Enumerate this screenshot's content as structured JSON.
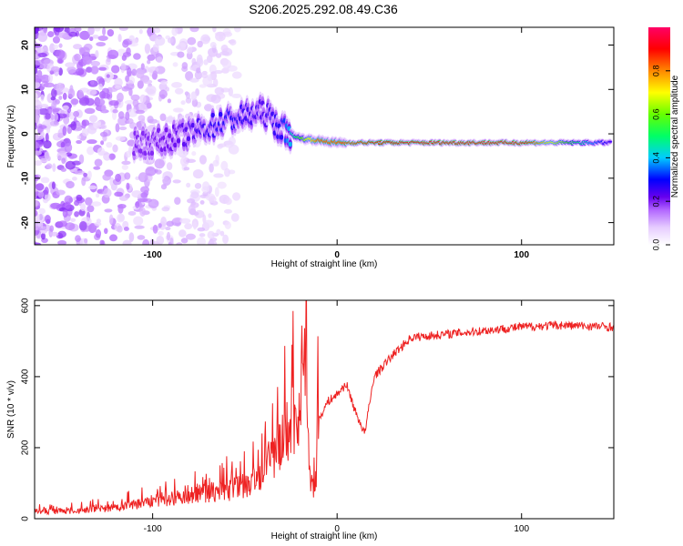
{
  "title": "S206.2025.292.08.49.C36",
  "chart_data": [
    {
      "type": "heatmap",
      "title": "S206.2025.292.08.49.C36",
      "xlabel": "Height of straight line (km)",
      "ylabel": "Frequency (Hz)",
      "xlim": [
        -164,
        150
      ],
      "ylim": [
        -25,
        24
      ],
      "xticks": [
        -100,
        0,
        100
      ],
      "yticks": [
        -20,
        -10,
        0,
        10,
        20
      ],
      "colorbar": {
        "label": "Normalized spectral amplitude",
        "range": [
          0,
          1
        ],
        "ticks": [
          "0.0",
          "0.2",
          "0.4",
          "0.6",
          "0.8"
        ],
        "colors": [
          "#ffffff",
          "#e6ccff",
          "#b266ff",
          "#6600ee",
          "#0000ff",
          "#00ccff",
          "#00ff66",
          "#66ff00",
          "#ffff00",
          "#ff8800",
          "#ff0000",
          "#ff0066"
        ]
      },
      "signal_line": {
        "description_points_x": [
          -100,
          -80,
          -60,
          -40,
          -30,
          -20,
          -10,
          0,
          20,
          50,
          100,
          150
        ],
        "frequency_hz": [
          -2,
          0,
          3,
          5,
          1,
          -1,
          -1.5,
          -2,
          -2,
          -2,
          -2,
          -2
        ],
        "peak_amplitude": [
          0.25,
          0.3,
          0.35,
          0.3,
          0.35,
          0.6,
          0.85,
          0.85,
          0.9,
          0.95,
          0.95,
          0.3
        ]
      }
    },
    {
      "type": "line",
      "xlabel": "Height of straight line (km)",
      "ylabel": "SNR (10 * v/v)",
      "xlim": [
        -164,
        150
      ],
      "ylim": [
        0,
        615
      ],
      "xticks": [
        -100,
        0,
        100
      ],
      "yticks": [
        0,
        200,
        400,
        600
      ],
      "series": [
        {
          "name": "SNR",
          "color": "#ee2222",
          "x": [
            -164,
            -140,
            -120,
            -100,
            -80,
            -60,
            -45,
            -35,
            -25,
            -20,
            -17,
            -15,
            -12,
            -10,
            -5,
            0,
            5,
            10,
            15,
            20,
            30,
            40,
            60,
            80,
            100,
            120,
            150
          ],
          "y": [
            20,
            22,
            30,
            50,
            70,
            80,
            100,
            170,
            260,
            320,
            600,
            120,
            70,
            280,
            330,
            350,
            380,
            300,
            240,
            400,
            460,
            510,
            520,
            530,
            540,
            545,
            540
          ]
        }
      ]
    }
  ]
}
